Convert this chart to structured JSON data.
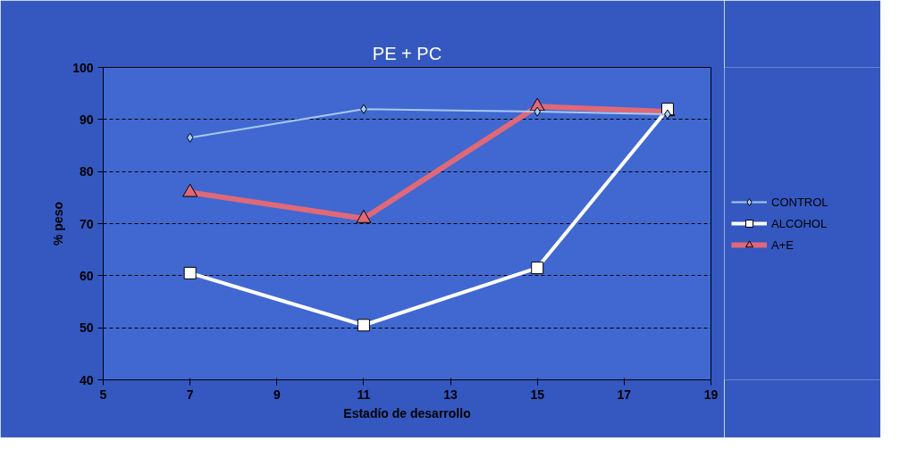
{
  "chart_data": {
    "type": "line",
    "title": "PE + PC",
    "xlabel": "Estadío de desarrollo",
    "ylabel": "% peso",
    "x": [
      7,
      11,
      15,
      18
    ],
    "series": [
      {
        "name": "CONTROL",
        "color": "#a8c8f0",
        "marker": "diamond",
        "values": [
          86.5,
          92,
          91.5,
          91
        ]
      },
      {
        "name": "ALCOHOL",
        "color": "#ffffff",
        "marker": "square",
        "values": [
          60.5,
          50.5,
          61.5,
          92
        ]
      },
      {
        "name": "A+E",
        "color": "#e06878",
        "marker": "triangle",
        "values": [
          76,
          71,
          92.5,
          91.5
        ]
      }
    ],
    "xlim": [
      5,
      19
    ],
    "xticks": [
      5,
      7,
      9,
      11,
      13,
      15,
      17,
      19
    ],
    "ylim": [
      40,
      100
    ],
    "yticks": [
      40,
      50,
      60,
      70,
      80,
      90,
      100
    ],
    "grid": "y",
    "legend": "right"
  }
}
